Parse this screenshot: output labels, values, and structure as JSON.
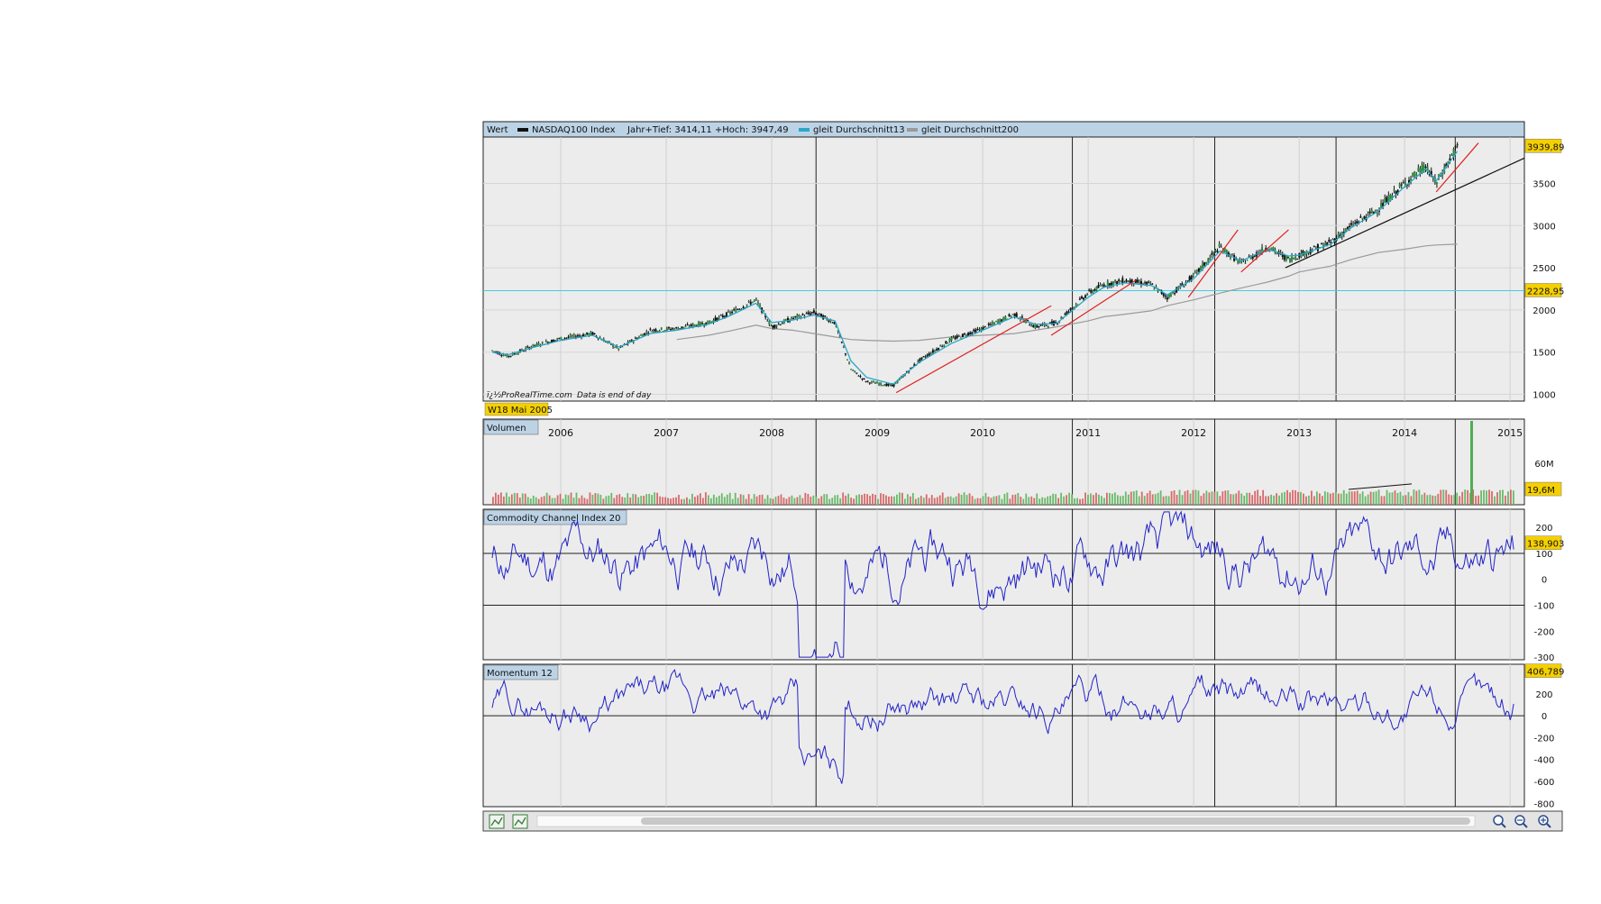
{
  "header": {
    "value_label": "Wert",
    "instrument": "NASDAQ100 Index",
    "range_text": "Jahr+Tief: 3414,11 +Hoch: 3947,49",
    "ma13_label": "gleit Durchschnitt13",
    "ma200_label": "gleit Durchschnitt200"
  },
  "source_text": "ï¿½ProRealTime.com",
  "source_note": "Data is end of day",
  "start_date": "W18 Mai 2005",
  "badges": {
    "last_price": "3939,89",
    "hline_price": "2228,95",
    "volume_last": "19,6M",
    "cci_last": "138,903",
    "mom_last": "406,789"
  },
  "panels": {
    "volume": "Volumen",
    "cci": "Commodity Channel Index 20",
    "momentum": "Momentum 12"
  },
  "colors": {
    "bg": "#ececec",
    "title_bar": "#bcd3e6",
    "ma13": "#2aa7c9",
    "ma200": "#9a9a9a",
    "indicator": "#2323c8",
    "trend": "#e02020",
    "badge": "#f5d000",
    "hline": "#3fd0e0"
  },
  "icons": [
    "chart-settings-icon",
    "indicator-icon",
    "zoom-fit-icon",
    "zoom-out-icon",
    "zoom-in-icon"
  ],
  "chart_data": [
    {
      "type": "line",
      "title": "NASDAQ100 Index",
      "x_tick_labels": [
        "2006",
        "2007",
        "2008",
        "2009",
        "2010",
        "2011",
        "2012",
        "2013",
        "2014",
        "2015"
      ],
      "y_tick_labels": [
        "1000",
        "1500",
        "2000",
        "2500",
        "3000",
        "3500"
      ],
      "ylim": [
        920,
        4050
      ],
      "xlim": [
        2005.35,
        2015.05
      ],
      "x": [
        2005.35,
        2005.5,
        2005.75,
        2006.0,
        2006.3,
        2006.55,
        2006.85,
        2007.1,
        2007.4,
        2007.6,
        2007.85,
        2008.0,
        2008.2,
        2008.4,
        2008.6,
        2008.75,
        2008.9,
        2009.15,
        2009.4,
        2009.7,
        2010.0,
        2010.3,
        2010.5,
        2010.7,
        2011.0,
        2011.15,
        2011.35,
        2011.6,
        2011.75,
        2012.0,
        2012.25,
        2012.45,
        2012.7,
        2012.9,
        2013.0,
        2013.3,
        2013.5,
        2013.75,
        2014.0,
        2014.2,
        2014.3,
        2014.5
      ],
      "series": [
        {
          "name": "NASDAQ100 Index",
          "values": [
            1520,
            1450,
            1580,
            1660,
            1720,
            1540,
            1760,
            1780,
            1850,
            1960,
            2120,
            1800,
            1900,
            1970,
            1850,
            1300,
            1150,
            1100,
            1400,
            1650,
            1780,
            1950,
            1800,
            1850,
            2200,
            2300,
            2350,
            2300,
            2150,
            2400,
            2750,
            2550,
            2750,
            2600,
            2650,
            2800,
            3000,
            3200,
            3500,
            3700,
            3500,
            3940
          ]
        },
        {
          "name": "gleit Durchschnitt13",
          "values": [
            1500,
            1470,
            1560,
            1640,
            1700,
            1560,
            1720,
            1760,
            1830,
            1930,
            2080,
            1850,
            1880,
            1940,
            1870,
            1400,
            1200,
            1120,
            1380,
            1600,
            1760,
            1920,
            1830,
            1840,
            2150,
            2270,
            2320,
            2290,
            2180,
            2370,
            2700,
            2580,
            2720,
            2640,
            2650,
            2780,
            2980,
            3170,
            3460,
            3670,
            3530,
            3880
          ]
        },
        {
          "name": "gleit Durchschnitt200",
          "values": [
            null,
            null,
            null,
            null,
            null,
            null,
            null,
            1650,
            1700,
            1750,
            1820,
            1780,
            1760,
            1720,
            1680,
            1650,
            1640,
            1630,
            1640,
            1680,
            1700,
            1720,
            1760,
            1800,
            1870,
            1920,
            1950,
            1990,
            2050,
            2120,
            2200,
            2260,
            2330,
            2400,
            2450,
            2520,
            2600,
            2680,
            2720,
            2760,
            2770,
            2780
          ]
        }
      ]
    },
    {
      "type": "bar",
      "title": "Volumen",
      "y_tick_labels": [
        "60M"
      ],
      "ylim": [
        0,
        100
      ]
    },
    {
      "type": "line",
      "title": "Commodity Channel Index 20",
      "y_tick_labels": [
        "200",
        "100",
        "0",
        "-100",
        "-200",
        "-300"
      ],
      "ylim": [
        -310,
        270
      ]
    },
    {
      "type": "line",
      "title": "Momentum 12",
      "y_tick_labels": [
        "200",
        "0",
        "-200",
        "-400",
        "-600",
        "-800"
      ],
      "ylim": [
        -830,
        470
      ]
    }
  ]
}
